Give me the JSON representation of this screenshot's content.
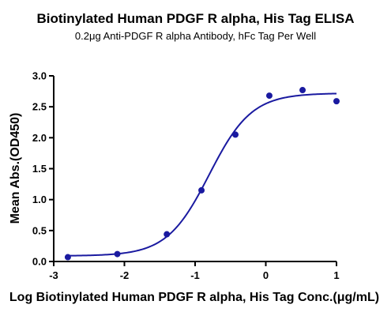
{
  "chart_data": {
    "type": "scatter",
    "title": "Biotinylated Human PDGF R alpha, His Tag ELISA",
    "subtitle": "0.2μg Anti-PDGF R alpha Antibody, hFc Tag Per Well",
    "xlabel": "Log Biotinylated Human PDGF R alpha, His Tag Conc.(μg/mL)",
    "ylabel": "Mean Abs.(OD450)",
    "xlim": [
      -3,
      1
    ],
    "ylim": [
      0,
      3.0
    ],
    "x_ticks": [
      "-3",
      "-2",
      "-1",
      "0",
      "1"
    ],
    "y_ticks": [
      "0.0",
      "0.5",
      "1.0",
      "1.5",
      "2.0",
      "2.5",
      "3.0"
    ],
    "grid": false,
    "colors": {
      "series": "#1a1aa0",
      "axis": "#000000"
    },
    "series": [
      {
        "x": [
          -2.8,
          -2.1,
          -1.4,
          -0.91,
          -0.43,
          0.05,
          0.52,
          1.0
        ],
        "y": [
          0.07,
          0.12,
          0.44,
          1.15,
          2.05,
          2.68,
          2.77,
          2.59
        ],
        "fit": {
          "model": "4PL",
          "bottom": 0.09,
          "top": 2.72,
          "logEC50": -0.8,
          "hill": 1.45
        }
      }
    ]
  }
}
